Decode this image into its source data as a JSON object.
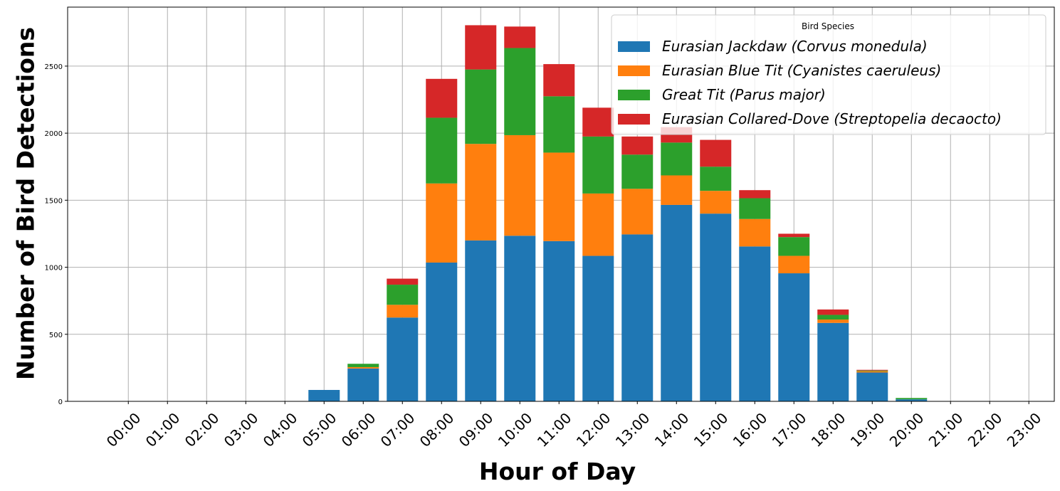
{
  "chart_data": {
    "type": "bar",
    "stacked": true,
    "xlabel": "Hour of Day",
    "ylabel": "Number of Bird Detections",
    "ylim": [
      0,
      2940
    ],
    "yticks": [
      0,
      500,
      1000,
      1500,
      2000,
      2500
    ],
    "grid": true,
    "legend_title": "Bird Species",
    "legend_position": "top-right",
    "categories": [
      "00:00",
      "01:00",
      "02:00",
      "03:00",
      "04:00",
      "05:00",
      "06:00",
      "07:00",
      "08:00",
      "09:00",
      "10:00",
      "11:00",
      "12:00",
      "13:00",
      "14:00",
      "15:00",
      "16:00",
      "17:00",
      "18:00",
      "19:00",
      "20:00",
      "21:00",
      "22:00",
      "23:00"
    ],
    "series": [
      {
        "name": "Eurasian Jackdaw (Corvus monedula)",
        "color": "#1f77b4",
        "values": [
          0,
          0,
          0,
          0,
          0,
          85,
          245,
          625,
          1035,
          1200,
          1235,
          1195,
          1085,
          1245,
          1465,
          1400,
          1155,
          955,
          585,
          215,
          15,
          0,
          0,
          0
        ]
      },
      {
        "name": "Eurasian Blue Tit (Cyanistes caeruleus)",
        "color": "#ff7f0e",
        "values": [
          0,
          0,
          0,
          0,
          0,
          0,
          10,
          95,
          590,
          720,
          750,
          660,
          465,
          340,
          220,
          170,
          205,
          130,
          25,
          10,
          0,
          0,
          0,
          0
        ]
      },
      {
        "name": "Great Tit (Parus major)",
        "color": "#2ca02c",
        "values": [
          0,
          0,
          0,
          0,
          0,
          0,
          25,
          150,
          490,
          555,
          650,
          420,
          425,
          255,
          245,
          180,
          155,
          140,
          35,
          5,
          10,
          0,
          0,
          0
        ]
      },
      {
        "name": "Eurasian Collared-Dove (Streptopelia decaocto)",
        "color": "#d62728",
        "values": [
          0,
          0,
          0,
          0,
          0,
          0,
          0,
          45,
          290,
          330,
          160,
          240,
          215,
          135,
          115,
          200,
          60,
          25,
          40,
          5,
          0,
          0,
          0,
          0
        ]
      }
    ]
  }
}
